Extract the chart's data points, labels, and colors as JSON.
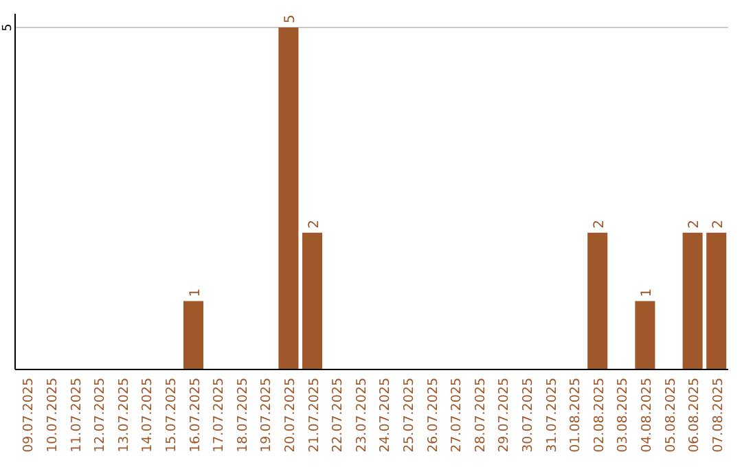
{
  "chart_data": {
    "type": "bar",
    "categories": [
      "09.07.2025",
      "10.07.2025",
      "11.07.2025",
      "12.07.2025",
      "13.07.2025",
      "14.07.2025",
      "15.07.2025",
      "16.07.2025",
      "17.07.2025",
      "18.07.2025",
      "19.07.2025",
      "20.07.2025",
      "21.07.2025",
      "22.07.2025",
      "23.07.2025",
      "24.07.2025",
      "25.07.2025",
      "26.07.2025",
      "27.07.2025",
      "28.07.2025",
      "29.07.2025",
      "30.07.2025",
      "31.07.2025",
      "01.08.2025",
      "02.08.2025",
      "03.08.2025",
      "04.08.2025",
      "05.08.2025",
      "06.08.2025",
      "07.08.2025"
    ],
    "values": [
      0,
      0,
      0,
      0,
      0,
      0,
      0,
      1,
      0,
      0,
      0,
      5,
      2,
      0,
      0,
      0,
      0,
      0,
      0,
      0,
      0,
      0,
      0,
      0,
      2,
      0,
      1,
      0,
      2,
      2
    ],
    "value_labels": [
      null,
      null,
      null,
      null,
      null,
      null,
      null,
      "1",
      null,
      null,
      null,
      "5",
      "2",
      null,
      null,
      null,
      null,
      null,
      null,
      null,
      null,
      null,
      null,
      null,
      "2",
      null,
      "1",
      null,
      "2",
      "2"
    ],
    "color": "#a0582b",
    "ylim": [
      0,
      5
    ],
    "yticks": [
      5
    ],
    "ref_lines": [
      {
        "axis": "y",
        "value": 5,
        "color": "#c8c8c8"
      }
    ]
  }
}
